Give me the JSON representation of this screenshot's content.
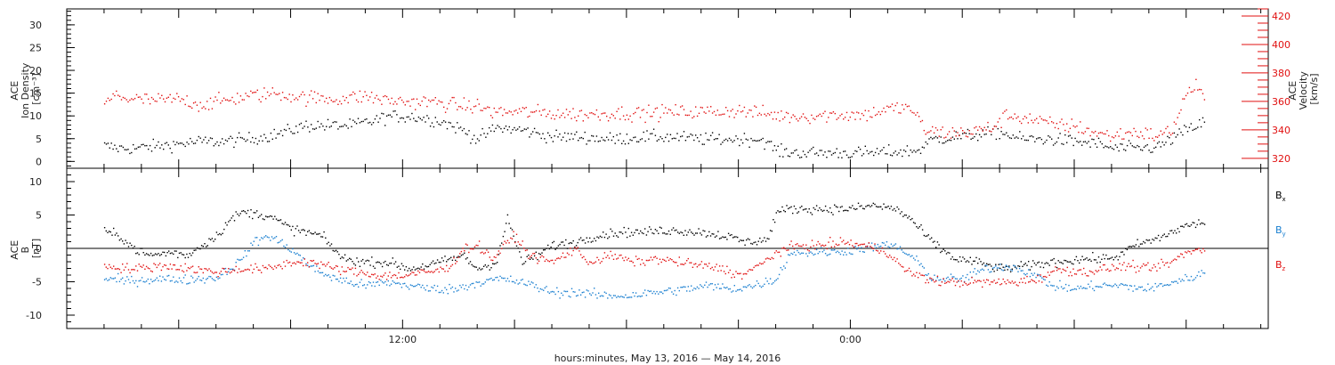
{
  "chart_data": [
    {
      "type": "scatter",
      "panel": "top",
      "left_axis": {
        "label_lines": [
          "ACE",
          "Ion Density",
          "[cm⁻³]"
        ],
        "ticks": [
          0,
          5,
          10,
          15,
          20,
          25,
          30
        ],
        "ylim": [
          -1.5,
          33.5
        ]
      },
      "right_axis": {
        "label_lines": [
          "ACE",
          "Velocity",
          "[km/s]"
        ],
        "ticks": [
          320,
          340,
          360,
          380,
          400,
          420
        ],
        "ylim": [
          313,
          425
        ]
      },
      "series": [
        {
          "axis": "left",
          "color": "#000000",
          "knots": [
            [
              0,
              3.5
            ],
            [
              0.4,
              3
            ],
            [
              0.8,
              3
            ],
            [
              1.4,
              3.5
            ],
            [
              2.0,
              4
            ],
            [
              2.6,
              4.5
            ],
            [
              3.2,
              4.5
            ],
            [
              3.8,
              5
            ],
            [
              4.6,
              6
            ],
            [
              5.4,
              8
            ],
            [
              6.0,
              8
            ],
            [
              6.6,
              8
            ],
            [
              7.2,
              9
            ],
            [
              7.6,
              10
            ],
            [
              8.2,
              10
            ],
            [
              9.0,
              9
            ],
            [
              9.6,
              7
            ],
            [
              10.0,
              5
            ],
            [
              10.5,
              7.5
            ],
            [
              11.2,
              7
            ],
            [
              12.0,
              5.5
            ],
            [
              12.8,
              5.5
            ],
            [
              13.6,
              5
            ],
            [
              14.4,
              5.5
            ],
            [
              15.2,
              5.5
            ],
            [
              16.0,
              5
            ],
            [
              17.0,
              5
            ],
            [
              17.6,
              5
            ],
            [
              18.1,
              2.2
            ],
            [
              18.8,
              2
            ],
            [
              19.6,
              2
            ],
            [
              20.4,
              2
            ],
            [
              21.1,
              2.2
            ],
            [
              21.8,
              2.5
            ],
            [
              22.2,
              5
            ],
            [
              22.8,
              5.5
            ],
            [
              23.4,
              6
            ],
            [
              24.0,
              6.5
            ],
            [
              24.6,
              5
            ],
            [
              25.4,
              5
            ],
            [
              26.0,
              4.5
            ],
            [
              26.6,
              4
            ],
            [
              27.0,
              3
            ],
            [
              27.6,
              3
            ],
            [
              28.2,
              3.2
            ],
            [
              28.6,
              5
            ],
            [
              29.0,
              7
            ],
            [
              29.3,
              8
            ],
            [
              29.5,
              9
            ]
          ]
        },
        {
          "axis": "right",
          "color": "#e11010",
          "knots": [
            [
              0,
              358
            ],
            [
              0.3,
              365
            ],
            [
              0.7,
              362
            ],
            [
              1.4,
              361
            ],
            [
              2.0,
              362
            ],
            [
              2.6,
              358
            ],
            [
              3.2,
              361
            ],
            [
              3.8,
              364
            ],
            [
              4.6,
              366
            ],
            [
              5.4,
              363
            ],
            [
              6.2,
              362
            ],
            [
              7.0,
              364
            ],
            [
              7.6,
              361
            ],
            [
              8.2,
              360
            ],
            [
              8.8,
              360
            ],
            [
              9.6,
              357
            ],
            [
              10.0,
              357
            ],
            [
              10.4,
              353
            ],
            [
              11.2,
              353
            ],
            [
              12.0,
              352
            ],
            [
              12.8,
              351
            ],
            [
              13.6,
              352
            ],
            [
              14.4,
              352
            ],
            [
              15.2,
              353
            ],
            [
              16.0,
              353
            ],
            [
              17.0,
              354
            ],
            [
              17.6,
              352
            ],
            [
              18.2,
              350
            ],
            [
              18.8,
              350
            ],
            [
              19.6,
              351
            ],
            [
              20.4,
              351
            ],
            [
              21.0,
              355
            ],
            [
              21.6,
              356
            ],
            [
              22.0,
              340
            ],
            [
              22.6,
              338
            ],
            [
              23.2,
              339
            ],
            [
              23.8,
              342
            ],
            [
              24.2,
              351
            ],
            [
              24.8,
              348
            ],
            [
              25.4,
              344
            ],
            [
              26.0,
              343
            ],
            [
              26.6,
              338
            ],
            [
              27.0,
              336
            ],
            [
              27.6,
              339
            ],
            [
              28.2,
              336
            ],
            [
              28.6,
              340
            ],
            [
              29.0,
              366
            ],
            [
              29.3,
              372
            ],
            [
              29.5,
              362
            ]
          ]
        }
      ]
    },
    {
      "type": "scatter",
      "panel": "bottom",
      "left_axis": {
        "label_lines": [
          "ACE",
          "B",
          "[nT]"
        ],
        "ticks": [
          -10,
          -5,
          0,
          5,
          10
        ],
        "ylim": [
          -12,
          12
        ]
      },
      "zero_line": true,
      "series": [
        {
          "name": "Bx",
          "label_main": "B",
          "label_sub": "x",
          "color": "#000000",
          "knots": [
            [
              0,
              2.5
            ],
            [
              0.4,
              2
            ],
            [
              0.8,
              0
            ],
            [
              1.2,
              -1
            ],
            [
              1.8,
              -0.5
            ],
            [
              2.2,
              -1
            ],
            [
              2.6,
              0.5
            ],
            [
              3.0,
              2
            ],
            [
              3.4,
              4.5
            ],
            [
              3.7,
              5.5
            ],
            [
              4.4,
              5
            ],
            [
              5.0,
              3
            ],
            [
              5.8,
              2
            ],
            [
              6.4,
              -1.5
            ],
            [
              7.0,
              -2
            ],
            [
              7.6,
              -2
            ],
            [
              8.2,
              -3
            ],
            [
              9.0,
              -2
            ],
            [
              9.6,
              -1
            ],
            [
              10.0,
              -3
            ],
            [
              10.5,
              -2
            ],
            [
              10.8,
              4.5
            ],
            [
              11.2,
              -2
            ],
            [
              11.6,
              -1
            ],
            [
              12.0,
              0.5
            ],
            [
              12.6,
              1
            ],
            [
              13.2,
              2
            ],
            [
              13.8,
              2.5
            ],
            [
              14.4,
              2.5
            ],
            [
              15.2,
              2.8
            ],
            [
              16.0,
              2.5
            ],
            [
              16.6,
              2
            ],
            [
              17.2,
              1
            ],
            [
              17.8,
              1.5
            ],
            [
              18.0,
              5.5
            ],
            [
              18.4,
              6
            ],
            [
              19.2,
              6
            ],
            [
              20.0,
              6
            ],
            [
              20.6,
              6.5
            ],
            [
              21.2,
              6
            ],
            [
              21.6,
              4.5
            ],
            [
              22.0,
              2
            ],
            [
              22.4,
              0
            ],
            [
              22.8,
              -1.5
            ],
            [
              23.4,
              -2
            ],
            [
              24.0,
              -3
            ],
            [
              24.8,
              -2.5
            ],
            [
              25.4,
              -2
            ],
            [
              26.2,
              -1.5
            ],
            [
              26.8,
              -1.5
            ],
            [
              27.2,
              -1
            ],
            [
              27.6,
              0.5
            ],
            [
              28.2,
              1.5
            ],
            [
              28.6,
              2.5
            ],
            [
              29.0,
              3.5
            ],
            [
              29.5,
              4
            ]
          ]
        },
        {
          "name": "By",
          "label_main": "B",
          "label_sub": "y",
          "color": "#1a7fd0",
          "knots": [
            [
              0,
              -4.5
            ],
            [
              0.6,
              -4.8
            ],
            [
              1.4,
              -4.5
            ],
            [
              2.2,
              -4.6
            ],
            [
              3.0,
              -4.3
            ],
            [
              3.6,
              -2
            ],
            [
              4.0,
              1
            ],
            [
              4.4,
              2
            ],
            [
              5.0,
              0
            ],
            [
              5.6,
              -3
            ],
            [
              6.2,
              -4.5
            ],
            [
              7.0,
              -5.5
            ],
            [
              7.6,
              -5
            ],
            [
              8.2,
              -5.5
            ],
            [
              8.8,
              -6
            ],
            [
              9.4,
              -6
            ],
            [
              10.0,
              -5
            ],
            [
              10.6,
              -4.5
            ],
            [
              11.2,
              -5
            ],
            [
              12.0,
              -6.5
            ],
            [
              12.6,
              -6.5
            ],
            [
              13.4,
              -7
            ],
            [
              14.0,
              -7
            ],
            [
              14.8,
              -6.5
            ],
            [
              15.6,
              -6
            ],
            [
              16.2,
              -5.5
            ],
            [
              16.8,
              -6
            ],
            [
              17.4,
              -5.5
            ],
            [
              18.0,
              -4.5
            ],
            [
              18.4,
              -0.5
            ],
            [
              19.0,
              -0.5
            ],
            [
              19.6,
              -0.5
            ],
            [
              20.2,
              0
            ],
            [
              20.8,
              0.5
            ],
            [
              21.2,
              0.5
            ],
            [
              21.8,
              -2
            ],
            [
              22.2,
              -4.5
            ],
            [
              23.0,
              -4.5
            ],
            [
              23.6,
              -3
            ],
            [
              24.2,
              -2.5
            ],
            [
              24.8,
              -3.5
            ],
            [
              25.4,
              -5.5
            ],
            [
              26.0,
              -6
            ],
            [
              26.6,
              -5.5
            ],
            [
              27.2,
              -5.5
            ],
            [
              28.0,
              -6
            ],
            [
              28.6,
              -5
            ],
            [
              29.0,
              -4.5
            ],
            [
              29.5,
              -3.5
            ]
          ]
        },
        {
          "name": "Bz",
          "label_main": "B",
          "label_sub": "z",
          "color": "#e11010",
          "knots": [
            [
              0,
              -2.5
            ],
            [
              0.8,
              -3
            ],
            [
              1.6,
              -2.5
            ],
            [
              2.4,
              -3
            ],
            [
              3.0,
              -3.5
            ],
            [
              3.6,
              -3
            ],
            [
              4.4,
              -3
            ],
            [
              5.0,
              -2
            ],
            [
              5.6,
              -2
            ],
            [
              6.2,
              -3
            ],
            [
              6.8,
              -3.5
            ],
            [
              7.4,
              -4
            ],
            [
              8.0,
              -4
            ],
            [
              8.6,
              -3.5
            ],
            [
              9.2,
              -3
            ],
            [
              9.6,
              0
            ],
            [
              10.0,
              0.5
            ],
            [
              10.4,
              -1.5
            ],
            [
              10.8,
              1
            ],
            [
              11.0,
              2
            ],
            [
              11.4,
              -1
            ],
            [
              12.0,
              -2
            ],
            [
              12.6,
              0
            ],
            [
              13.0,
              -2
            ],
            [
              13.6,
              -1
            ],
            [
              14.2,
              -2
            ],
            [
              14.8,
              -1.5
            ],
            [
              15.4,
              -2
            ],
            [
              16.0,
              -2.5
            ],
            [
              16.6,
              -3
            ],
            [
              17.0,
              -4
            ],
            [
              17.4,
              -3
            ],
            [
              17.8,
              -1.5
            ],
            [
              18.0,
              -0.5
            ],
            [
              18.6,
              0.5
            ],
            [
              19.2,
              0.5
            ],
            [
              19.8,
              1
            ],
            [
              20.4,
              0.5
            ],
            [
              21.0,
              -0.5
            ],
            [
              21.4,
              -3
            ],
            [
              22.0,
              -4.5
            ],
            [
              22.6,
              -5
            ],
            [
              23.2,
              -5
            ],
            [
              23.8,
              -5
            ],
            [
              24.4,
              -5
            ],
            [
              25.0,
              -4.5
            ],
            [
              25.6,
              -3
            ],
            [
              26.2,
              -3.5
            ],
            [
              26.8,
              -3
            ],
            [
              27.4,
              -2.5
            ],
            [
              28.0,
              -3
            ],
            [
              28.6,
              -2
            ],
            [
              29.0,
              -0.5
            ],
            [
              29.5,
              0
            ]
          ]
        }
      ]
    }
  ],
  "x_axis": {
    "xlim": [
      -1,
      31.2
    ],
    "tick_labels": [
      {
        "x": 8,
        "label": "12:00"
      },
      {
        "x": 20,
        "label": "0:00"
      }
    ],
    "xlabel": "hours:minutes, May 13, 2016 — May 14, 2016"
  },
  "colors": {
    "frame": "#000000",
    "text": "#222222",
    "red": "#e11010",
    "blue": "#1a7fd0"
  }
}
